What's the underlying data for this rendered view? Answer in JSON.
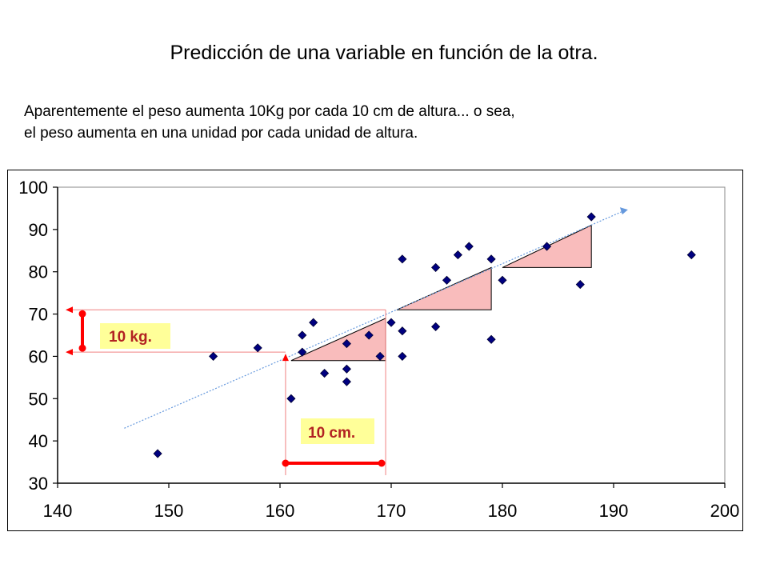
{
  "slide": {
    "title": "Predicción de una variable en función de la otra.",
    "subtitle_line1": "Aparentemente el peso aumenta 10Kg por cada 10 cm de altura... o sea,",
    "subtitle_line2": "el peso aumenta en una unidad por cada unidad de altura."
  },
  "chart_data": {
    "type": "scatter",
    "xlim": [
      140,
      200
    ],
    "ylim": [
      30,
      100
    ],
    "x_ticks": [
      "140",
      "150",
      "160",
      "170",
      "180",
      "190",
      "200"
    ],
    "y_ticks": [
      "30",
      "40",
      "50",
      "60",
      "70",
      "80",
      "90",
      "100"
    ],
    "grid": false,
    "marker_color": "#000080",
    "points": [
      [
        149,
        37
      ],
      [
        154,
        60
      ],
      [
        158,
        62
      ],
      [
        161,
        50
      ],
      [
        162,
        61
      ],
      [
        162,
        65
      ],
      [
        163,
        68
      ],
      [
        164,
        56
      ],
      [
        166,
        63
      ],
      [
        166,
        57
      ],
      [
        166,
        54
      ],
      [
        168,
        65
      ],
      [
        169,
        60
      ],
      [
        170,
        68
      ],
      [
        171,
        83
      ],
      [
        171,
        66
      ],
      [
        171,
        60
      ],
      [
        174,
        81
      ],
      [
        174,
        67
      ],
      [
        175,
        78
      ],
      [
        176,
        84
      ],
      [
        177,
        86
      ],
      [
        179,
        83
      ],
      [
        179,
        64
      ],
      [
        180,
        78
      ],
      [
        184,
        86
      ],
      [
        187,
        77
      ],
      [
        188,
        93
      ],
      [
        197,
        84
      ]
    ],
    "trendline": {
      "from": [
        146,
        43
      ],
      "to": [
        191,
        94.5
      ],
      "color": "#6699dd"
    },
    "triangles": [
      {
        "base_from": [
          161,
          59
        ],
        "base_to": [
          169.5,
          59
        ],
        "apex": [
          169.5,
          69
        ]
      },
      {
        "base_from": [
          170.5,
          71
        ],
        "base_to": [
          179,
          71
        ],
        "apex": [
          179,
          81
        ]
      },
      {
        "base_from": [
          180,
          81
        ],
        "base_to": [
          188,
          81
        ],
        "apex": [
          188,
          91
        ]
      }
    ],
    "annotations": {
      "weight_label": "10 kg.",
      "height_label": "10 cm.",
      "color": "#ff0000",
      "weight_range": [
        61,
        71
      ],
      "height_range": [
        160.5,
        169.5
      ]
    }
  }
}
